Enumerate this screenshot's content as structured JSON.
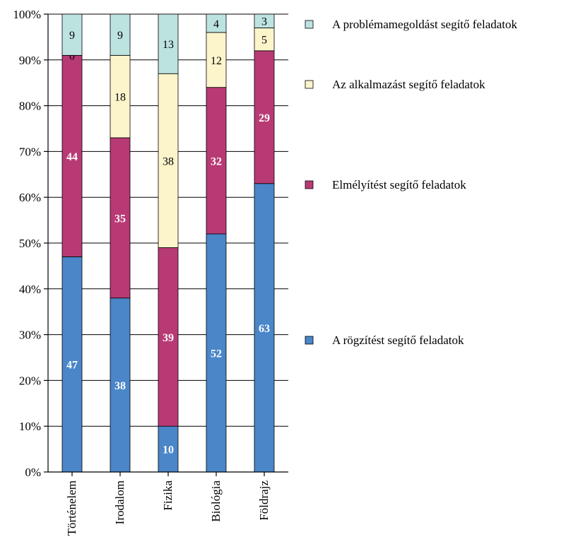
{
  "chart_data": {
    "type": "bar",
    "stacked": true,
    "orientation": "vertical",
    "categories": [
      "Történelem",
      "Irodalom",
      "Fizika",
      "Biológia",
      "Földrajz"
    ],
    "series": [
      {
        "name": "A rögzítést segítő feladatok",
        "values": [
          47,
          38,
          10,
          52,
          63
        ],
        "color": "#4A86C8"
      },
      {
        "name": "Elmélyítést segítő feladatok",
        "values": [
          44,
          35,
          39,
          32,
          29
        ],
        "color": "#B83A74"
      },
      {
        "name": "Az alkalmazást segítő feladatok",
        "values": [
          0,
          18,
          38,
          12,
          5
        ],
        "color": "#FCF5CC"
      },
      {
        "name": "A problémamegoldást segítő feladatok",
        "values": [
          9,
          9,
          13,
          4,
          3
        ],
        "color": "#BDE3E1"
      }
    ],
    "ylim": [
      0,
      100
    ],
    "yticks": [
      "0%",
      "10%",
      "20%",
      "30%",
      "40%",
      "50%",
      "60%",
      "70%",
      "80%",
      "90%",
      "100%"
    ],
    "grid": true,
    "legend_position": "right",
    "legend_order": [
      "A problémamegoldást segítő feladatok",
      "Az alkalmazást segítő feladatok",
      "Elmélyítést segítő feladatok",
      "A rögzítést segítő feladatok"
    ]
  }
}
